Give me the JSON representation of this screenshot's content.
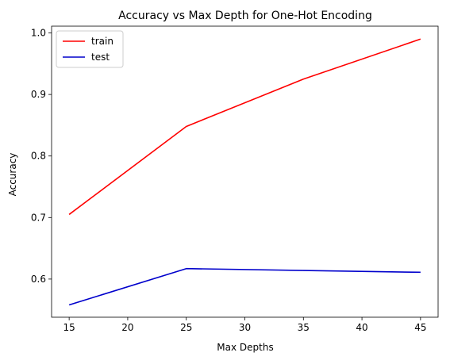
{
  "chart_data": {
    "type": "line",
    "title": "Accuracy vs Max Depth for One-Hot Encoding",
    "xlabel": "Max Depths",
    "ylabel": "Accuracy",
    "x": [
      15,
      25,
      35,
      45
    ],
    "xticks": [
      15,
      20,
      25,
      30,
      35,
      40,
      45
    ],
    "yticks": [
      0.6,
      0.7,
      0.8,
      0.9,
      1.0
    ],
    "xtick_labels": [
      "15",
      "20",
      "25",
      "30",
      "35",
      "40",
      "45"
    ],
    "ytick_labels": [
      "0.6",
      "0.7",
      "0.8",
      "0.9",
      "1.0"
    ],
    "xlim": [
      13.5,
      46.5
    ],
    "ylim": [
      0.538,
      1.011
    ],
    "grid": false,
    "legend_position": "top-left",
    "series": [
      {
        "name": "train",
        "color": "#ff0000",
        "values": [
          0.705,
          0.848,
          0.925,
          0.99
        ]
      },
      {
        "name": "test",
        "color": "#0000cc",
        "values": [
          0.558,
          0.617,
          0.614,
          0.611
        ]
      }
    ]
  }
}
